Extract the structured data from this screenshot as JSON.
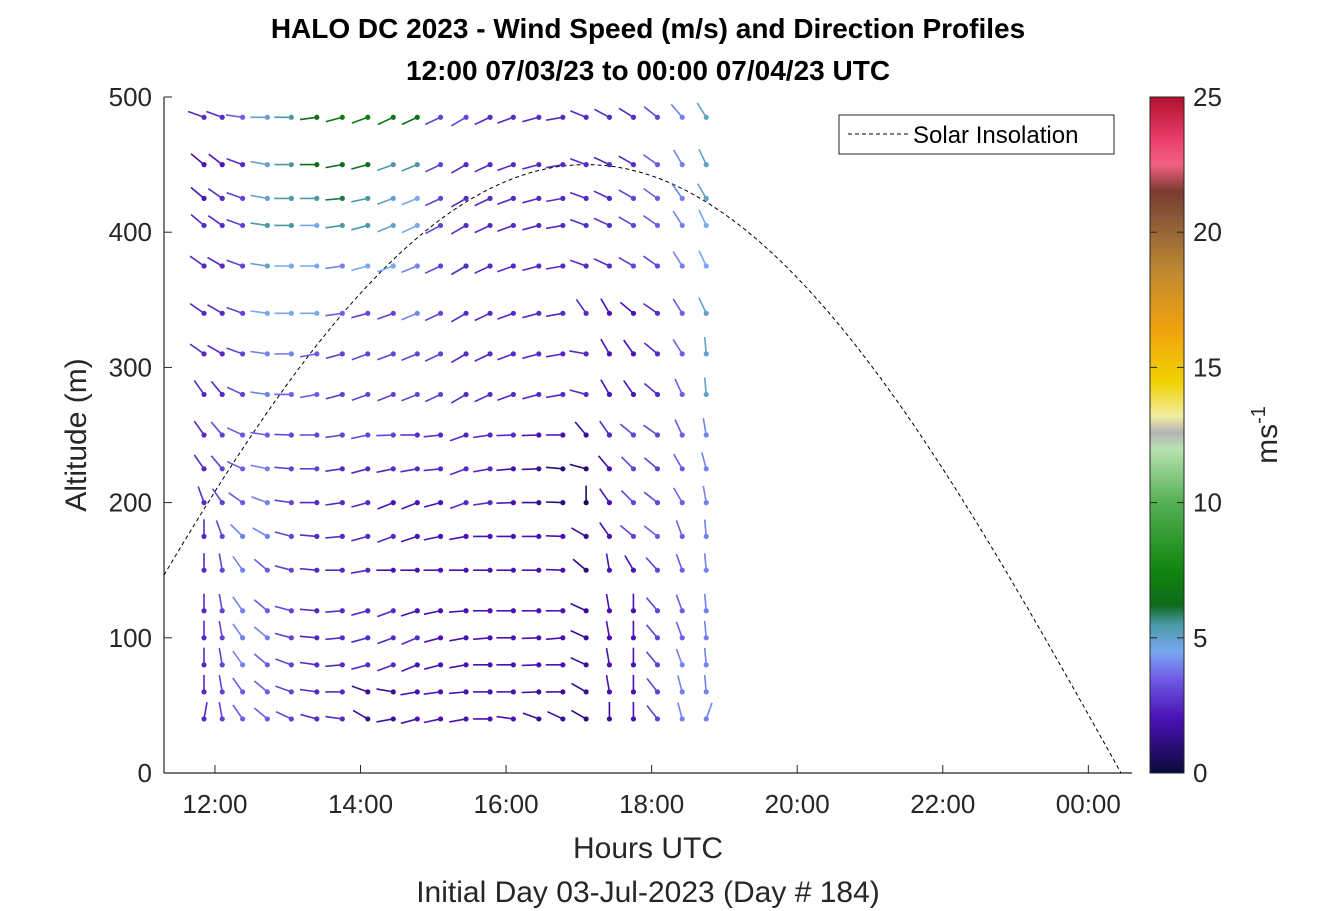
{
  "chart_data": {
    "type": "wind-barb-profile",
    "title_line1": "HALO DC 2023 - Wind Speed (m/s) and Direction Profiles",
    "title_line2": "12:00 07/03/23 to 00:00 07/04/23  UTC",
    "xlabel": "Hours UTC",
    "subtitle": "Initial Day 03-Jul-2023 (Day # 184)",
    "ylabel": "Altitude (m)",
    "colorbar_label": "ms",
    "colorbar_label_sup": "-1",
    "xlim_hours": [
      11.3,
      24.6
    ],
    "ylim": [
      0,
      500
    ],
    "xticks": [
      {
        "hour": 12,
        "label": "12:00"
      },
      {
        "hour": 14,
        "label": "14:00"
      },
      {
        "hour": 16,
        "label": "16:00"
      },
      {
        "hour": 18,
        "label": "18:00"
      },
      {
        "hour": 20,
        "label": "20:00"
      },
      {
        "hour": 22,
        "label": "22:00"
      },
      {
        "hour": 24,
        "label": "00:00"
      }
    ],
    "yticks": [
      0,
      100,
      200,
      300,
      400,
      500
    ],
    "colorbar_ticks": [
      0,
      5,
      10,
      15,
      20,
      25
    ],
    "colorbar_range": [
      0,
      25
    ],
    "legend": {
      "label": "Solar Insolation",
      "position": "top-right"
    },
    "grid": false,
    "solar_insolation_curve": {
      "start_hour": 11.3,
      "start_alt": 135,
      "peak_hour": 17.1,
      "peak_alt": 450,
      "end_hour": 24.45,
      "end_alt": 0
    },
    "profile_times_hours": [
      11.85,
      12.1,
      12.38,
      12.72,
      13.05,
      13.4,
      13.75,
      14.1,
      14.45,
      14.78,
      15.1,
      15.45,
      15.78,
      16.1,
      16.45,
      16.78,
      17.1,
      17.42,
      17.75,
      18.08,
      18.42,
      18.75
    ],
    "altitudes_m": [
      40,
      60,
      80,
      100,
      120,
      150,
      175,
      200,
      225,
      250,
      280,
      310,
      340,
      375,
      405,
      425,
      450,
      485
    ],
    "colormap": [
      {
        "v": 0,
        "c": "#0a0a3c"
      },
      {
        "v": 2,
        "c": "#4a10b4"
      },
      {
        "v": 3.5,
        "c": "#6f5ce6"
      },
      {
        "v": 4.5,
        "c": "#78a8f0"
      },
      {
        "v": 5.5,
        "c": "#4a9aa6"
      },
      {
        "v": 6.2,
        "c": "#0e6a1c"
      },
      {
        "v": 7.5,
        "c": "#10850e"
      },
      {
        "v": 10,
        "c": "#55b055"
      },
      {
        "v": 12,
        "c": "#b8e2b0"
      },
      {
        "v": 12.6,
        "c": "#b4b4b4"
      },
      {
        "v": 13.2,
        "c": "#f2eda0"
      },
      {
        "v": 14.5,
        "c": "#f0d000"
      },
      {
        "v": 16.5,
        "c": "#f0a010"
      },
      {
        "v": 18.5,
        "c": "#c08a30"
      },
      {
        "v": 20.5,
        "c": "#8a5a38"
      },
      {
        "v": 21.5,
        "c": "#7a3a30"
      },
      {
        "v": 22.5,
        "c": "#f26080"
      },
      {
        "v": 23.5,
        "c": "#e83c6a"
      },
      {
        "v": 25,
        "c": "#b0102a"
      }
    ],
    "wind_rows": [
      {
        "alt": 485,
        "speed": [
          2.5,
          2.5,
          3.5,
          5.0,
          5.5,
          6.5,
          7.0,
          7.0,
          6.8,
          6.5,
          3.0,
          3.0,
          2.5,
          2.5,
          2.5,
          2.5,
          2.5,
          2.5,
          2.5,
          3.0,
          4.0,
          5.0
        ],
        "dir": [
          250,
          250,
          262,
          270,
          270,
          278,
          285,
          290,
          295,
          295,
          295,
          300,
          295,
          290,
          285,
          280,
          248,
          242,
          238,
          232,
          220,
          212
        ]
      },
      {
        "alt": 450,
        "speed": [
          2.0,
          2.0,
          2.5,
          5.0,
          5.5,
          6.5,
          6.2,
          6.5,
          5.5,
          5.5,
          3.0,
          2.5,
          2.5,
          2.5,
          2.5,
          2.5,
          2.5,
          2.5,
          2.5,
          3.5,
          4.0,
          5.0
        ],
        "dir": [
          230,
          232,
          250,
          260,
          270,
          270,
          280,
          285,
          290,
          292,
          295,
          300,
          295,
          290,
          285,
          280,
          250,
          245,
          240,
          235,
          210,
          205
        ]
      },
      {
        "alt": 425,
        "speed": [
          2.0,
          2.5,
          3.0,
          5.0,
          5.5,
          5.5,
          6.0,
          5.5,
          5.0,
          4.5,
          3.0,
          2.5,
          2.5,
          2.5,
          2.5,
          2.5,
          2.5,
          2.5,
          3.0,
          3.5,
          4.0,
          5.0
        ],
        "dir": [
          230,
          235,
          250,
          260,
          270,
          270,
          275,
          282,
          290,
          292,
          295,
          300,
          295,
          290,
          285,
          280,
          250,
          245,
          240,
          235,
          215,
          210
        ]
      },
      {
        "alt": 405,
        "speed": [
          2.5,
          2.5,
          3.0,
          5.5,
          5.5,
          4.5,
          5.5,
          5.5,
          5.0,
          4.5,
          3.0,
          2.5,
          2.5,
          2.5,
          2.5,
          2.5,
          2.5,
          2.5,
          3.0,
          3.5,
          4.0,
          4.5
        ],
        "dir": [
          230,
          235,
          250,
          262,
          270,
          270,
          278,
          285,
          292,
          295,
          298,
          300,
          295,
          290,
          285,
          280,
          250,
          245,
          240,
          235,
          212,
          205
        ]
      },
      {
        "alt": 375,
        "speed": [
          2.5,
          2.5,
          3.0,
          5.0,
          4.5,
          4.5,
          4.0,
          4.5,
          4.5,
          4.0,
          3.0,
          2.5,
          2.5,
          2.5,
          2.5,
          2.5,
          2.5,
          2.5,
          3.0,
          3.0,
          4.0,
          4.5
        ],
        "dir": [
          235,
          240,
          250,
          262,
          270,
          270,
          278,
          285,
          290,
          292,
          295,
          300,
          295,
          290,
          285,
          280,
          250,
          245,
          240,
          235,
          212,
          205
        ]
      },
      {
        "alt": 340,
        "speed": [
          2.5,
          2.5,
          3.0,
          4.5,
          4.5,
          4.5,
          3.5,
          3.0,
          3.0,
          4.0,
          3.0,
          2.5,
          2.5,
          2.5,
          2.5,
          2.5,
          2.5,
          2.0,
          2.0,
          2.5,
          3.5,
          5.0
        ],
        "dir": [
          235,
          240,
          250,
          262,
          270,
          270,
          278,
          285,
          290,
          292,
          295,
          300,
          295,
          290,
          285,
          280,
          215,
          210,
          230,
          235,
          212,
          205
        ]
      },
      {
        "alt": 310,
        "speed": [
          2.5,
          2.5,
          3.0,
          4.0,
          4.0,
          3.5,
          3.0,
          3.0,
          3.0,
          3.0,
          3.0,
          2.5,
          2.5,
          2.5,
          2.5,
          2.5,
          2.5,
          2.0,
          2.0,
          2.5,
          3.5,
          5.0
        ],
        "dir": [
          235,
          240,
          250,
          262,
          270,
          280,
          285,
          290,
          290,
          292,
          295,
          300,
          295,
          290,
          285,
          280,
          260,
          210,
          215,
          230,
          212,
          185
        ]
      },
      {
        "alt": 280,
        "speed": [
          2.5,
          2.5,
          3.0,
          4.0,
          3.5,
          3.5,
          3.0,
          3.0,
          3.0,
          3.0,
          3.0,
          2.5,
          2.5,
          2.5,
          2.5,
          2.5,
          2.5,
          2.0,
          2.0,
          2.5,
          3.5,
          5.0
        ],
        "dir": [
          215,
          220,
          245,
          262,
          270,
          280,
          285,
          290,
          292,
          292,
          295,
          300,
          295,
          290,
          285,
          280,
          255,
          210,
          215,
          230,
          205,
          185
        ]
      },
      {
        "alt": 250,
        "speed": [
          2.5,
          3.0,
          3.5,
          3.5,
          3.0,
          3.0,
          3.0,
          3.0,
          3.0,
          2.5,
          2.5,
          2.5,
          2.5,
          2.5,
          2.0,
          2.0,
          1.5,
          2.5,
          3.0,
          3.0,
          3.5,
          4.0
        ],
        "dir": [
          215,
          220,
          245,
          262,
          268,
          270,
          278,
          282,
          272,
          270,
          276,
          290,
          278,
          272,
          272,
          270,
          220,
          215,
          230,
          235,
          205,
          190
        ]
      },
      {
        "alt": 225,
        "speed": [
          2.5,
          3.0,
          3.5,
          4.0,
          3.0,
          3.0,
          2.5,
          2.5,
          2.5,
          2.5,
          2.5,
          2.5,
          2.5,
          2.0,
          1.5,
          1.0,
          1.0,
          2.0,
          3.0,
          3.0,
          3.5,
          4.0
        ],
        "dir": [
          215,
          220,
          245,
          258,
          265,
          270,
          278,
          285,
          282,
          280,
          276,
          290,
          280,
          275,
          272,
          265,
          255,
          220,
          225,
          230,
          210,
          195
        ]
      },
      {
        "alt": 200,
        "speed": [
          2.5,
          3.0,
          3.5,
          4.0,
          3.0,
          2.5,
          2.5,
          2.5,
          2.0,
          2.0,
          2.0,
          2.5,
          2.5,
          2.0,
          1.5,
          1.0,
          0.5,
          2.0,
          3.0,
          3.0,
          3.5,
          4.0
        ],
        "dir": [
          200,
          215,
          235,
          250,
          262,
          270,
          278,
          285,
          292,
          292,
          285,
          290,
          278,
          272,
          270,
          268,
          180,
          215,
          225,
          232,
          210,
          190
        ]
      },
      {
        "alt": 175,
        "speed": [
          2.5,
          3.0,
          4.0,
          4.0,
          3.0,
          2.5,
          2.5,
          2.5,
          2.5,
          2.0,
          2.0,
          2.0,
          2.0,
          2.0,
          2.0,
          2.0,
          1.5,
          2.0,
          3.0,
          3.5,
          3.5,
          4.0
        ],
        "dir": [
          180,
          200,
          225,
          240,
          255,
          265,
          275,
          285,
          290,
          288,
          282,
          280,
          270,
          270,
          270,
          268,
          240,
          215,
          230,
          232,
          200,
          185
        ]
      },
      {
        "alt": 150,
        "speed": [
          2.5,
          3.0,
          4.0,
          3.5,
          3.0,
          2.5,
          2.5,
          2.5,
          2.0,
          2.0,
          2.0,
          2.0,
          2.0,
          2.0,
          2.0,
          2.0,
          1.0,
          2.0,
          2.0,
          3.0,
          3.5,
          4.0
        ],
        "dir": [
          180,
          190,
          215,
          230,
          255,
          265,
          270,
          280,
          270,
          270,
          270,
          270,
          270,
          270,
          270,
          268,
          230,
          190,
          210,
          222,
          200,
          185
        ]
      },
      {
        "alt": 120,
        "speed": [
          2.5,
          3.0,
          4.0,
          3.5,
          3.0,
          2.5,
          2.5,
          2.5,
          2.5,
          2.0,
          2.0,
          2.0,
          2.0,
          2.0,
          2.0,
          2.0,
          1.5,
          2.0,
          2.0,
          3.0,
          3.5,
          4.0
        ],
        "dir": [
          180,
          190,
          215,
          230,
          255,
          265,
          275,
          285,
          290,
          288,
          282,
          275,
          270,
          270,
          270,
          270,
          245,
          190,
          180,
          220,
          200,
          185
        ]
      },
      {
        "alt": 100,
        "speed": [
          2.5,
          3.0,
          4.0,
          4.0,
          3.0,
          2.5,
          2.5,
          2.5,
          2.5,
          2.5,
          2.0,
          2.0,
          2.0,
          2.0,
          2.0,
          2.0,
          1.5,
          2.0,
          2.0,
          3.0,
          3.5,
          4.0
        ],
        "dir": [
          180,
          190,
          215,
          230,
          255,
          265,
          275,
          285,
          290,
          292,
          285,
          280,
          275,
          270,
          272,
          275,
          245,
          190,
          180,
          220,
          200,
          185
        ]
      },
      {
        "alt": 80,
        "speed": [
          2.5,
          3.0,
          4.0,
          3.5,
          3.0,
          2.5,
          2.5,
          2.5,
          2.5,
          2.0,
          2.0,
          2.0,
          2.0,
          2.0,
          2.0,
          2.0,
          1.5,
          2.0,
          2.0,
          3.0,
          4.0,
          4.0
        ],
        "dir": [
          180,
          190,
          215,
          230,
          250,
          262,
          275,
          285,
          290,
          292,
          285,
          280,
          270,
          270,
          272,
          270,
          245,
          190,
          180,
          220,
          200,
          185
        ]
      },
      {
        "alt": 60,
        "speed": [
          2.5,
          3.0,
          3.5,
          3.5,
          3.0,
          2.5,
          2.5,
          1.5,
          1.5,
          2.0,
          2.0,
          2.0,
          2.0,
          2.0,
          1.5,
          1.5,
          1.5,
          2.0,
          2.0,
          3.0,
          4.0,
          4.0
        ],
        "dir": [
          180,
          190,
          215,
          230,
          250,
          262,
          270,
          250,
          260,
          280,
          278,
          275,
          270,
          270,
          272,
          270,
          240,
          190,
          180,
          218,
          195,
          185
        ]
      },
      {
        "alt": 40,
        "speed": [
          2.5,
          3.0,
          3.5,
          3.5,
          3.0,
          2.5,
          2.5,
          1.5,
          1.5,
          2.0,
          2.0,
          2.0,
          2.0,
          2.0,
          1.5,
          1.5,
          1.0,
          1.5,
          2.0,
          3.0,
          4.0,
          4.0
        ],
        "dir": [
          170,
          190,
          215,
          230,
          245,
          255,
          262,
          240,
          280,
          285,
          282,
          280,
          270,
          262,
          250,
          245,
          240,
          180,
          180,
          218,
          195,
          160
        ]
      }
    ]
  }
}
